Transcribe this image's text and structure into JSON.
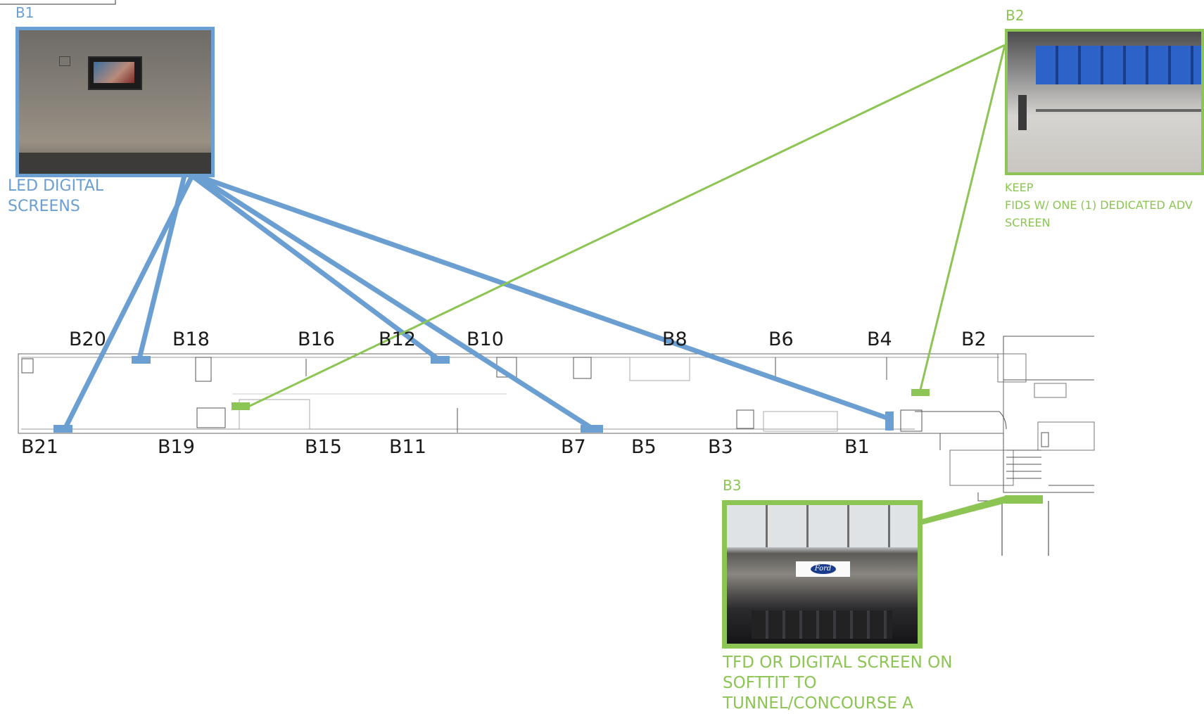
{
  "callouts": {
    "b1": {
      "tag": "B1",
      "caption_line1": "LED DIGITAL",
      "caption_line2": "SCREENS",
      "photo_subject": "wall-mounted LED digital screen",
      "color": "#6b9fd1"
    },
    "b2": {
      "tag": "B2",
      "caption_line1": "KEEP",
      "caption_line2": "FIDS W/ ONE (1) DEDICATED ADV",
      "caption_line3": "SCREEN",
      "photo_subject": "flight information display screens",
      "color": "#8cc554"
    },
    "b3": {
      "tag": "B3",
      "caption_line1": "TFD OR DIGITAL SCREEN ON",
      "caption_line2": "SOFTTIT TO",
      "caption_line3": "TUNNEL/CONCOURSE A",
      "photo_subject": "Ford sign above escalator to tunnel",
      "brand_text": "Ford",
      "color": "#8cc554"
    }
  },
  "gates_top": [
    "B20",
    "B18",
    "B16",
    "B12",
    "B10",
    "B8",
    "B6",
    "B4",
    "B2"
  ],
  "gates_bottom": [
    "B21",
    "B19",
    "B15",
    "B11",
    "B7",
    "B5",
    "B3",
    "B1"
  ],
  "colors": {
    "blue": "#6b9fd1",
    "green": "#8cc554",
    "plan_line": "#555555"
  }
}
